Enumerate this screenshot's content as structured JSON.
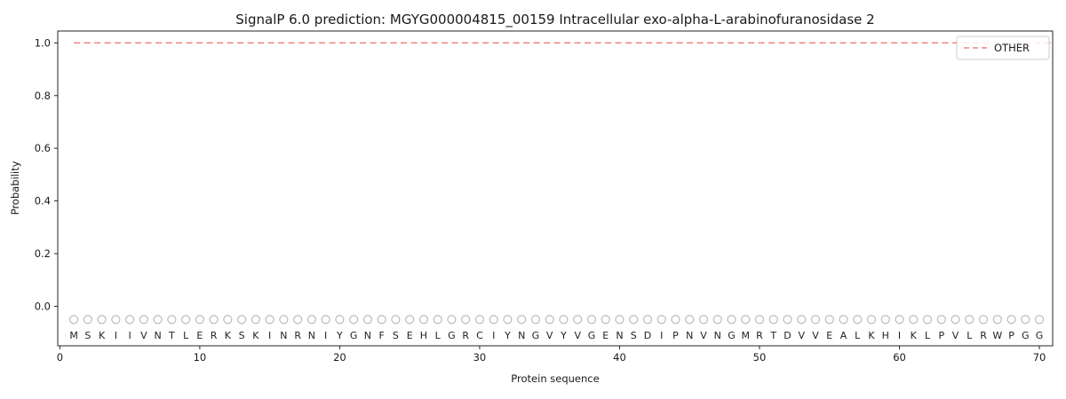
{
  "title": "SignalP 6.0 prediction: MGYG000004815_00159 Intracellular exo-alpha-L-arabinofuranosidase 2",
  "chart_data": {
    "type": "line",
    "title": "SignalP 6.0 prediction: MGYG000004815_00159 Intracellular exo-alpha-L-arabinofuranosidase 2",
    "xlabel": "Protein sequence",
    "ylabel": "Probability",
    "xlim": [
      -0.15,
      70.95
    ],
    "ylim": [
      -0.15,
      1.045
    ],
    "xticks": [
      0,
      10,
      20,
      30,
      40,
      50,
      60,
      70
    ],
    "yticks": [
      0.0,
      0.2,
      0.4,
      0.6,
      0.8,
      1.0
    ],
    "grid": false,
    "sequence": "MSKIIVNTLERKSKINRNIYGNFSEHLGRCIYNGVYVGENSDIPNVNGMRTDVVEALKHIKLPVLRWPGG",
    "marker_y": -0.05,
    "series": [
      {
        "name": "OTHER",
        "kind": "hline",
        "y": 1.0,
        "x_start": 1,
        "x_end": 70.95,
        "color": "#f08080",
        "dashed": true
      }
    ],
    "legend": {
      "position": "upper right",
      "entries": [
        {
          "label": "OTHER",
          "color": "#f08080",
          "dashed": true
        }
      ]
    },
    "colors": {
      "marker_stroke": "#b3b3b3",
      "letter": "#1f1f1f",
      "axis": "#262626",
      "tick_label": "#1a1a1a",
      "legend_border": "#cccccc"
    }
  }
}
